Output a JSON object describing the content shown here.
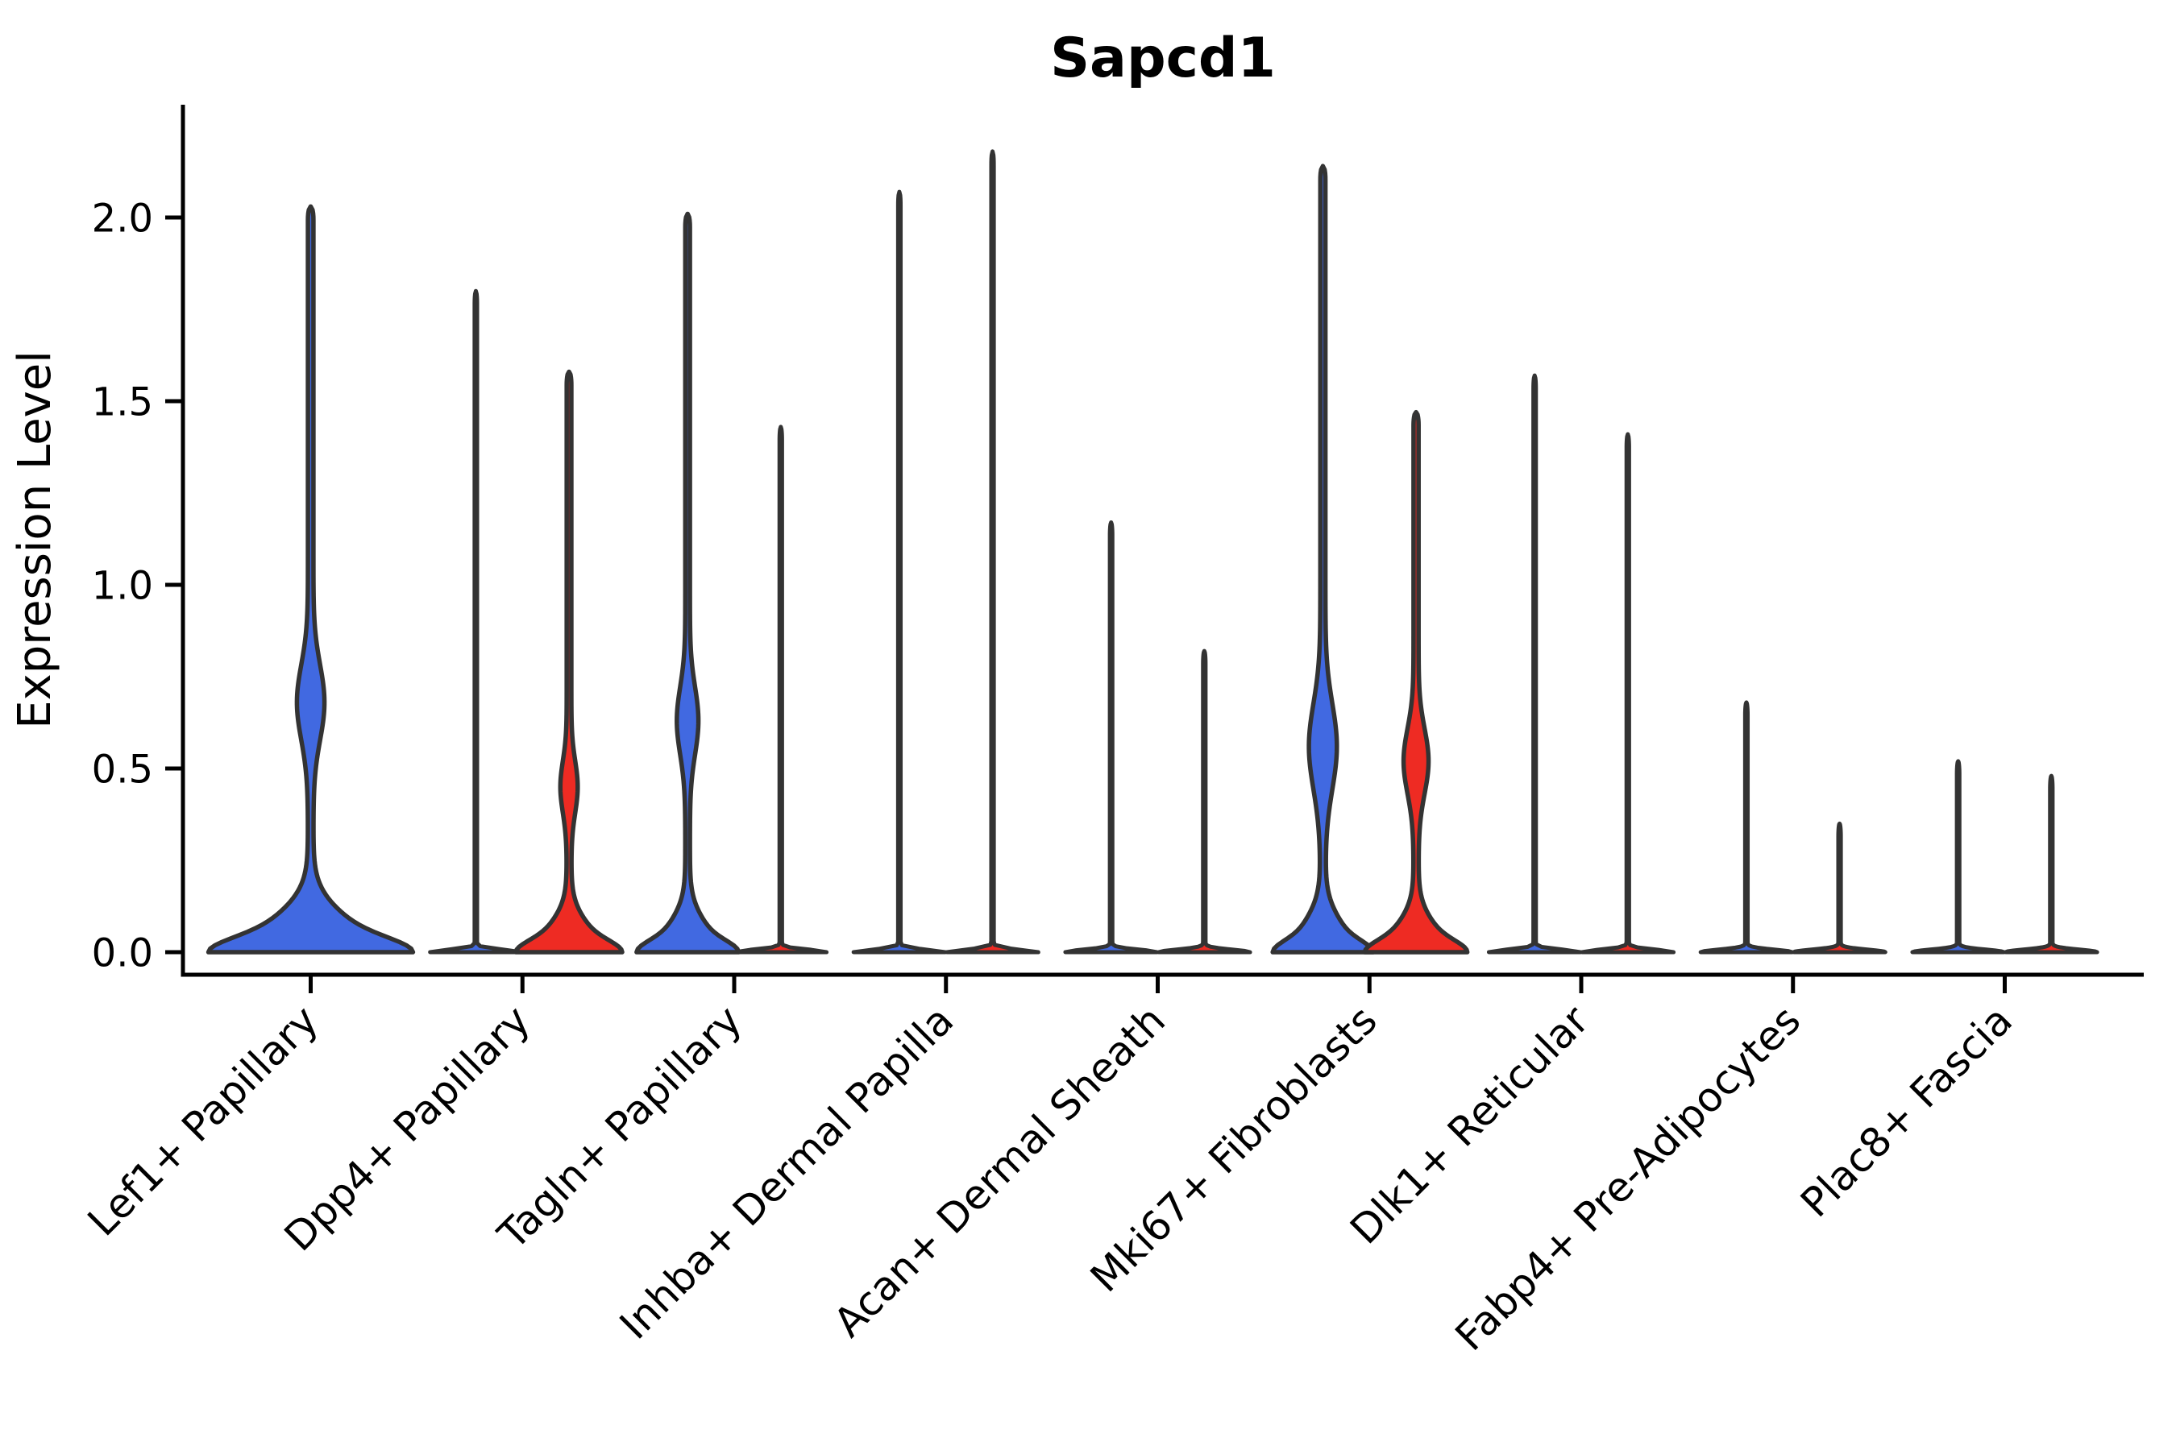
{
  "title": "Sapcd1",
  "style": {
    "background": "#ffffff",
    "outline_color": "#333333",
    "axis_color": "#000000",
    "blue": "#4169E1",
    "red": "#EE2B23"
  },
  "chart_data": {
    "type": "violin",
    "title": "Sapcd1",
    "xlabel": "",
    "ylabel": "Expression Level",
    "legend_position": "none",
    "grid": false,
    "ylim": [
      -0.06,
      2.31
    ],
    "ytick_values": [
      0,
      0.5,
      1,
      1.5,
      2
    ],
    "ytick_labels": [
      "0.0",
      "0.5",
      "1.0",
      "1.5",
      "2.0"
    ],
    "categories": [
      "Lef1+ Papillary",
      "Dpp4+ Papillary",
      "Tagln+ Papillary",
      "Inhba+ Dermal Papilla",
      "Acan+ Dermal Sheath",
      "Mki67+ Fibroblasts",
      "Dlk1+ Reticular",
      "Fabp4+ Pre-Adipocytes",
      "Plac8+ Fascia"
    ],
    "groups": [
      {
        "name": "blue",
        "color": "#4169E1"
      },
      {
        "name": "red",
        "color": "#EE2B23"
      }
    ],
    "violins": [
      {
        "category": "Lef1+ Papillary",
        "ci": 0,
        "group": "blue",
        "offset": 0,
        "max": 2.03,
        "kind": "violin",
        "base": [
          {
            "w": 0.28,
            "s": 0.125
          },
          {
            "w": 0.19,
            "s": 0.05
          }
        ],
        "bulge": {
          "v": 0.68,
          "w": 0.052,
          "s": 0.145
        },
        "stem": 0.013
      },
      {
        "category": "Dpp4+ Papillary",
        "ci": 1,
        "group": "blue",
        "offset": -0.22,
        "max": 1.8,
        "kind": "spike",
        "base": [
          {
            "w": 0.21,
            "s": 0.01
          }
        ],
        "bulge": null,
        "stem": 0.006
      },
      {
        "category": "Dpp4+ Papillary",
        "ci": 1,
        "group": "red",
        "offset": 0.22,
        "max": 1.58,
        "kind": "violin",
        "base": [
          {
            "w": 0.14,
            "s": 0.1
          },
          {
            "w": 0.1,
            "s": 0.04
          }
        ],
        "bulge": {
          "v": 0.45,
          "w": 0.03,
          "s": 0.1
        },
        "stem": 0.011
      },
      {
        "category": "Tagln+ Papillary",
        "ci": 2,
        "group": "blue",
        "offset": -0.22,
        "max": 2.01,
        "kind": "violin",
        "base": [
          {
            "w": 0.13,
            "s": 0.105
          },
          {
            "w": 0.1,
            "s": 0.04
          }
        ],
        "bulge": {
          "v": 0.63,
          "w": 0.04,
          "s": 0.13
        },
        "stem": 0.011
      },
      {
        "category": "Tagln+ Papillary",
        "ci": 2,
        "group": "red",
        "offset": 0.22,
        "max": 1.43,
        "kind": "spike",
        "base": [
          {
            "w": 0.21,
            "s": 0.01
          }
        ],
        "bulge": null,
        "stem": 0.006
      },
      {
        "category": "Inhba+ Dermal Papilla",
        "ci": 3,
        "group": "blue",
        "offset": -0.22,
        "max": 2.07,
        "kind": "spike",
        "base": [
          {
            "w": 0.21,
            "s": 0.01
          }
        ],
        "bulge": null,
        "stem": 0.006
      },
      {
        "category": "Inhba+ Dermal Papilla",
        "ci": 3,
        "group": "red",
        "offset": 0.22,
        "max": 2.18,
        "kind": "spike",
        "base": [
          {
            "w": 0.21,
            "s": 0.01
          }
        ],
        "bulge": null,
        "stem": 0.006
      },
      {
        "category": "Acan+ Dermal Sheath",
        "ci": 4,
        "group": "blue",
        "offset": -0.22,
        "max": 1.17,
        "kind": "spike",
        "base": [
          {
            "w": 0.21,
            "s": 0.01
          }
        ],
        "bulge": null,
        "stem": 0.006
      },
      {
        "category": "Acan+ Dermal Sheath",
        "ci": 4,
        "group": "red",
        "offset": 0.22,
        "max": 0.82,
        "kind": "spike",
        "base": [
          {
            "w": 0.21,
            "s": 0.01
          }
        ],
        "bulge": null,
        "stem": 0.006
      },
      {
        "category": "Mki67+ Fibroblasts",
        "ci": 5,
        "group": "blue",
        "offset": -0.22,
        "max": 2.14,
        "kind": "violin",
        "base": [
          {
            "w": 0.13,
            "s": 0.11
          },
          {
            "w": 0.095,
            "s": 0.04
          }
        ],
        "bulge": {
          "v": 0.56,
          "w": 0.054,
          "s": 0.165
        },
        "stem": 0.012
      },
      {
        "category": "Mki67+ Fibroblasts",
        "ci": 5,
        "group": "red",
        "offset": 0.22,
        "max": 1.47,
        "kind": "violin",
        "base": [
          {
            "w": 0.135,
            "s": 0.1
          },
          {
            "w": 0.095,
            "s": 0.04
          }
        ],
        "bulge": {
          "v": 0.52,
          "w": 0.047,
          "s": 0.125
        },
        "stem": 0.012
      },
      {
        "category": "Dlk1+ Reticular",
        "ci": 6,
        "group": "blue",
        "offset": -0.22,
        "max": 1.57,
        "kind": "spike",
        "base": [
          {
            "w": 0.21,
            "s": 0.01
          }
        ],
        "bulge": null,
        "stem": 0.006
      },
      {
        "category": "Dlk1+ Reticular",
        "ci": 6,
        "group": "red",
        "offset": 0.22,
        "max": 1.41,
        "kind": "spike",
        "base": [
          {
            "w": 0.21,
            "s": 0.01
          }
        ],
        "bulge": null,
        "stem": 0.006
      },
      {
        "category": "Fabp4+ Pre-Adipocytes",
        "ci": 7,
        "group": "blue",
        "offset": -0.22,
        "max": 0.68,
        "kind": "spike",
        "base": [
          {
            "w": 0.21,
            "s": 0.01
          }
        ],
        "bulge": null,
        "stem": 0.006
      },
      {
        "category": "Fabp4+ Pre-Adipocytes",
        "ci": 7,
        "group": "red",
        "offset": 0.22,
        "max": 0.35,
        "kind": "spike",
        "base": [
          {
            "w": 0.21,
            "s": 0.01
          }
        ],
        "bulge": null,
        "stem": 0.006
      },
      {
        "category": "Plac8+ Fascia",
        "ci": 8,
        "group": "blue",
        "offset": -0.22,
        "max": 0.52,
        "kind": "spike",
        "base": [
          {
            "w": 0.21,
            "s": 0.01
          }
        ],
        "bulge": null,
        "stem": 0.006
      },
      {
        "category": "Plac8+ Fascia",
        "ci": 8,
        "group": "red",
        "offset": 0.22,
        "max": 0.48,
        "kind": "spike",
        "base": [
          {
            "w": 0.21,
            "s": 0.01
          }
        ],
        "bulge": null,
        "stem": 0.006
      }
    ]
  }
}
